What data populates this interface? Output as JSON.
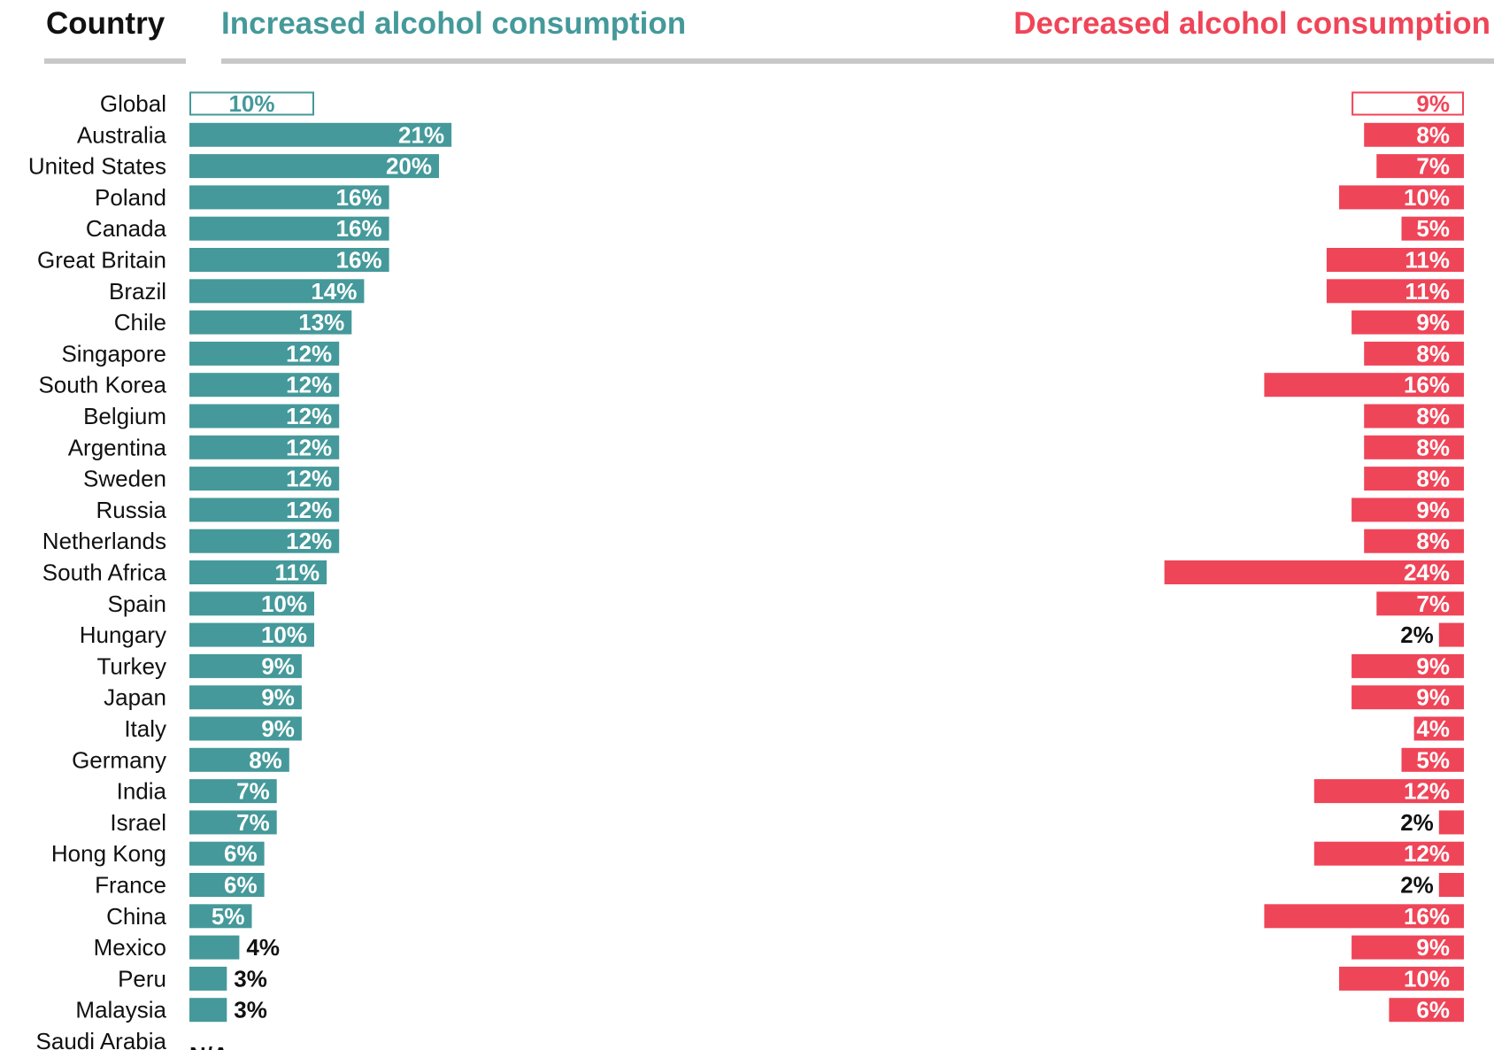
{
  "colors": {
    "increase": "#45999a",
    "decrease": "#ef4558",
    "divider": "#c8c8c8",
    "outside_label": "#111111",
    "inside_label": "#ffffff"
  },
  "headers": {
    "country": "Country",
    "increased": "Increased alcohol consumption",
    "decreased": "Decreased alcohol consumption"
  },
  "chart_data": {
    "type": "bar",
    "orientation": "horizontal",
    "categories": [
      "Global",
      "Australia",
      "United States",
      "Poland",
      "Canada",
      "Great Britain",
      "Brazil",
      "Chile",
      "Singapore",
      "South Korea",
      "Belgium",
      "Argentina",
      "Sweden",
      "Russia",
      "Netherlands",
      "South Africa",
      "Spain",
      "Hungary",
      "Turkey",
      "Japan",
      "Italy",
      "Germany",
      "India",
      "Israel",
      "Hong Kong",
      "France",
      "China",
      "Mexico",
      "Peru",
      "Malaysia",
      "Saudi Arabia"
    ],
    "series": [
      {
        "name": "Increased alcohol consumption",
        "values": [
          10,
          21,
          20,
          16,
          16,
          16,
          14,
          13,
          12,
          12,
          12,
          12,
          12,
          12,
          12,
          11,
          10,
          10,
          9,
          9,
          9,
          8,
          7,
          7,
          6,
          6,
          5,
          4,
          3,
          3,
          null
        ],
        "labels": [
          "10%",
          "21%",
          "20%",
          "16%",
          "16%",
          "16%",
          "14%",
          "13%",
          "12%",
          "12%",
          "12%",
          "12%",
          "12%",
          "12%",
          "12%",
          "11%",
          "10%",
          "10%",
          "9%",
          "9%",
          "9%",
          "8%",
          "7%",
          "7%",
          "6%",
          "6%",
          "5%",
          "4%",
          "3%",
          "3%",
          "N/A"
        ]
      },
      {
        "name": "Decreased alcohol consumption",
        "values": [
          9,
          8,
          7,
          10,
          5,
          11,
          11,
          9,
          8,
          16,
          8,
          8,
          8,
          9,
          8,
          24,
          7,
          2,
          9,
          9,
          4,
          5,
          12,
          2,
          12,
          2,
          16,
          9,
          10,
          6,
          null
        ],
        "labels": [
          "9%",
          "8%",
          "7%",
          "10%",
          "5%",
          "11%",
          "11%",
          "9%",
          "8%",
          "16%",
          "8%",
          "8%",
          "8%",
          "9%",
          "8%",
          "24%",
          "7%",
          "2%",
          "9%",
          "9%",
          "4%",
          "5%",
          "12%",
          "2%",
          "12%",
          "2%",
          "16%",
          "9%",
          "10%",
          "6%",
          ""
        ]
      }
    ],
    "highlight_first_row": true,
    "legend": "none",
    "grid": false
  }
}
